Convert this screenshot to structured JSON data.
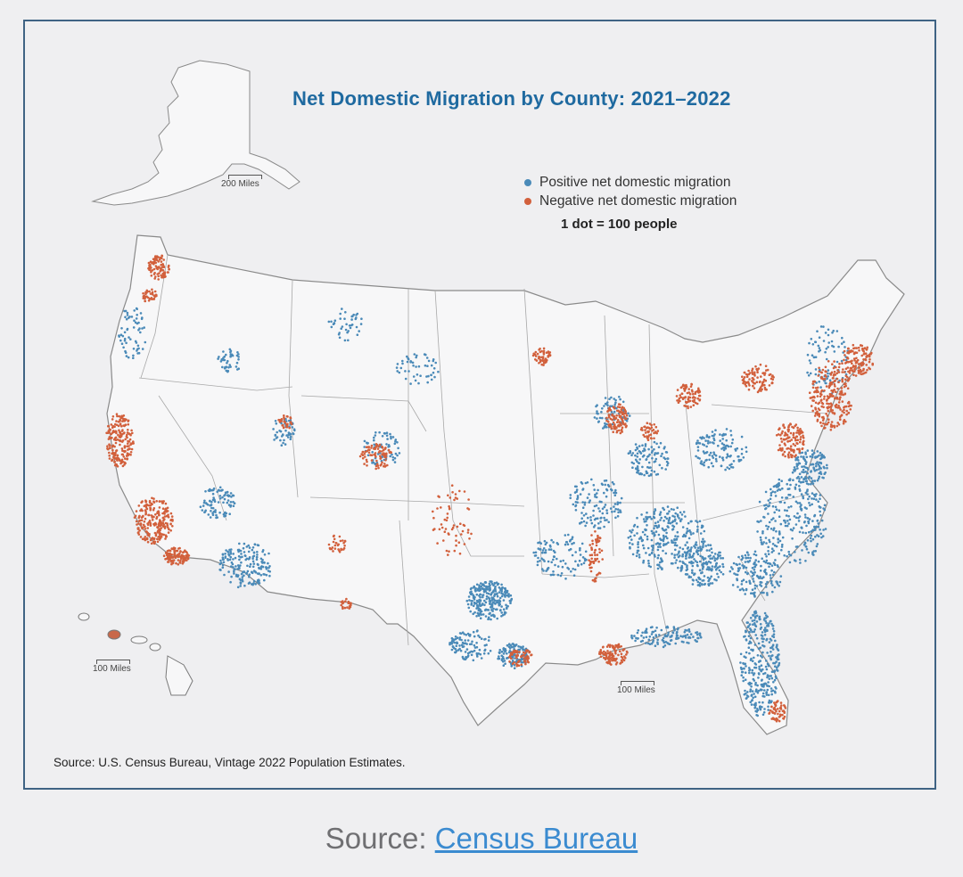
{
  "map": {
    "title": "Net Domestic Migration by County: 2021–2022",
    "legend": {
      "positive_label": "Positive net domestic migration",
      "negative_label": "Negative net domestic migration",
      "dot_scale": "1 dot = 100 people"
    },
    "scale_bars": {
      "alaska": "200 Miles",
      "hawaii": "100 Miles",
      "mainland": "100 Miles"
    },
    "source_note": "Source: U.S. Census Bureau, Vintage 2022 Population Estimates."
  },
  "colors": {
    "positive": "#4a8ab8",
    "negative": "#d2603c",
    "title": "#1f6aa0",
    "frame": "#3f6384"
  },
  "caption": {
    "prefix": "Source: ",
    "link_text": "Census Bureau"
  }
}
